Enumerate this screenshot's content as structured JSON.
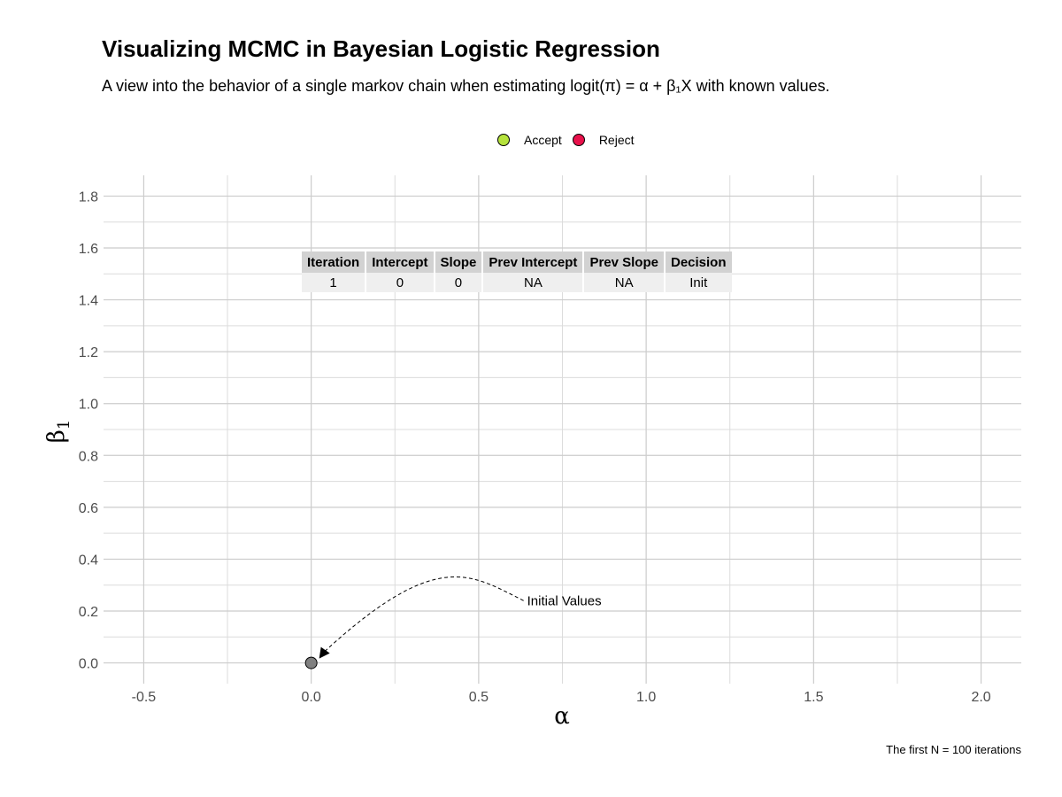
{
  "title": "Visualizing MCMC in Bayesian Logistic Regression",
  "subtitle": "A view into the behavior of a single markov chain when estimating logit(π) = α + β₁X with known values.",
  "legend": [
    {
      "label": "Accept",
      "color": "#b5e23c"
    },
    {
      "label": "Reject",
      "color": "#e8114b"
    }
  ],
  "table": {
    "headers": [
      "Iteration",
      "Intercept",
      "Slope",
      "Prev Intercept",
      "Prev Slope",
      "Decision"
    ],
    "rows": [
      [
        "1",
        "0",
        "0",
        "NA",
        "NA",
        "Init"
      ]
    ]
  },
  "caption": "The first N = 100 iterations",
  "chart_data": {
    "type": "scatter",
    "xlabel": "α",
    "ylabel": "β₁",
    "xlim": [
      -0.62,
      2.12
    ],
    "ylim": [
      -0.08,
      1.88
    ],
    "x_ticks": [
      -0.5,
      0.0,
      0.5,
      1.0,
      1.5,
      2.0
    ],
    "x_tick_labels": [
      "-0.5",
      "0.0",
      "0.5",
      "1.0",
      "1.5",
      "2.0"
    ],
    "y_ticks": [
      0.0,
      0.2,
      0.4,
      0.6,
      0.8,
      1.0,
      1.2,
      1.4,
      1.6,
      1.8
    ],
    "y_tick_labels": [
      "0.0",
      "0.2",
      "0.4",
      "0.6",
      "0.8",
      "1.0",
      "1.2",
      "1.4",
      "1.6",
      "1.8"
    ],
    "grid": true,
    "points": [
      {
        "x": 0.0,
        "y": 0.0,
        "color": "#808080"
      }
    ],
    "annotation": {
      "text": "Initial Values",
      "x": 0.65,
      "y": 0.24,
      "arrow_to": [
        0.0,
        0.0
      ]
    }
  }
}
